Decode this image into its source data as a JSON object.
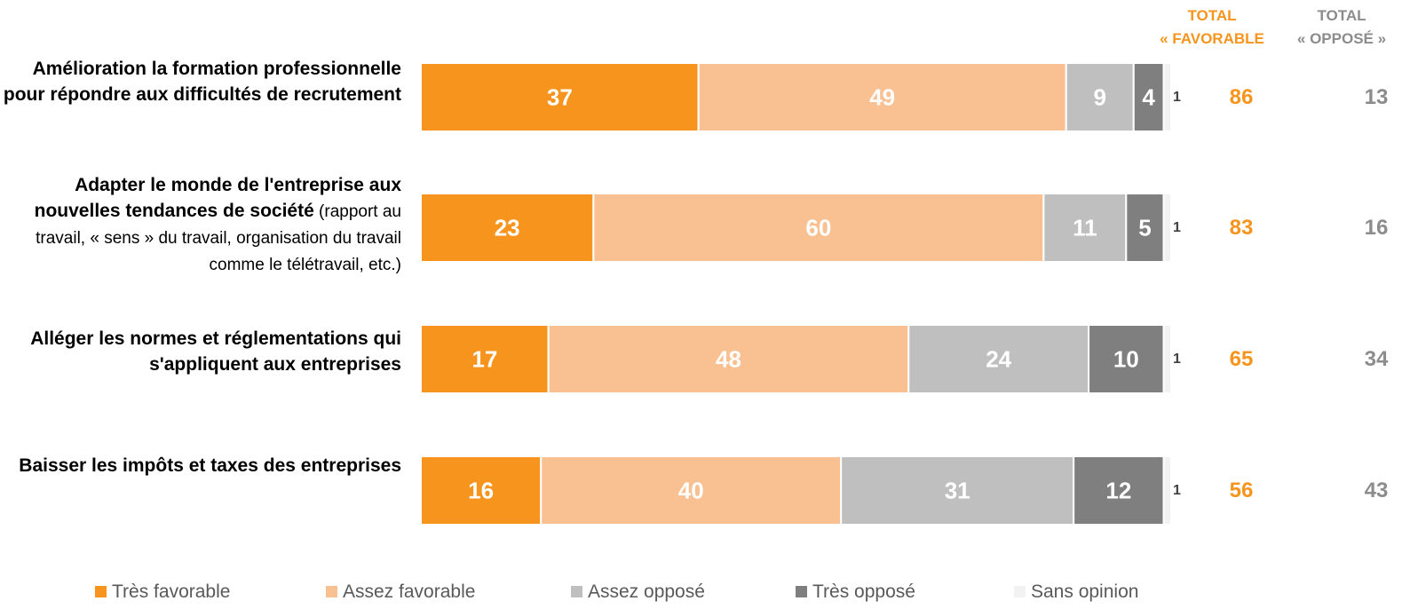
{
  "header": {
    "favorable_line1": "TOTAL",
    "favorable_line2": "« FAVORABLE",
    "oppose_line1": "TOTAL",
    "oppose_line2": "« OPPOSÉ »"
  },
  "colors": {
    "tres_favorable": "#f7941d",
    "assez_favorable": "#f9c192",
    "assez_oppose": "#bfbfbf",
    "tres_oppose": "#7f7f7f",
    "sans_opinion": "#f2f2f2",
    "favorable_text": "#f7941d",
    "oppose_text": "#8c8c8c"
  },
  "chart_data": {
    "type": "bar",
    "orientation": "horizontal",
    "stacked": true,
    "xlim": [
      0,
      100
    ],
    "categories": [
      "Amélioration la formation professionnelle pour répondre aux difficultés de recrutement",
      "Adapter le monde de l'entreprise aux nouvelles tendances de société (rapport au travail, « sens » du travail, organisation du travail comme le télétravail, etc.)",
      "Alléger les normes et réglementations qui s'appliquent aux entreprises",
      "Baisser les impôts et taxes des entreprises"
    ],
    "category_labels": [
      {
        "bold": "Amélioration la formation professionnelle pour répondre aux difficultés de recrutement",
        "rest": ""
      },
      {
        "bold": "Adapter le monde de l'entreprise aux nouvelles tendances de société",
        "rest": " (rapport au travail, « sens » du travail, organisation du travail comme le télétravail, etc.)"
      },
      {
        "bold": "Alléger les normes et réglementations qui s'appliquent aux entreprises",
        "rest": ""
      },
      {
        "bold": "Baisser les impôts et taxes des entreprises",
        "rest": ""
      }
    ],
    "series": [
      {
        "name": "Très favorable",
        "values": [
          37,
          23,
          17,
          16
        ]
      },
      {
        "name": "Assez favorable",
        "values": [
          49,
          60,
          48,
          40
        ]
      },
      {
        "name": "Assez opposé",
        "values": [
          9,
          11,
          24,
          31
        ]
      },
      {
        "name": "Très opposé",
        "values": [
          4,
          5,
          10,
          12
        ]
      },
      {
        "name": "Sans opinion",
        "values": [
          1,
          1,
          1,
          1
        ]
      }
    ],
    "total_favorable": [
      86,
      83,
      65,
      56
    ],
    "total_oppose": [
      13,
      16,
      34,
      43
    ],
    "legend_position": "bottom",
    "grid": false
  }
}
